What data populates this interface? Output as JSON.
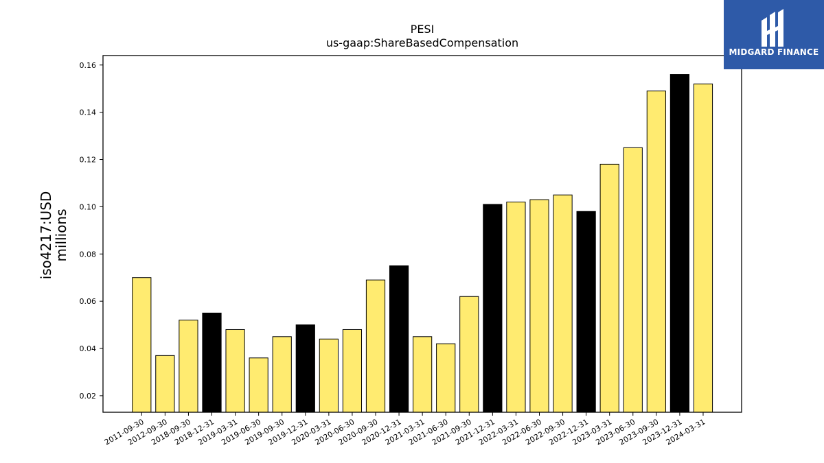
{
  "chart_data": {
    "type": "bar",
    "title": "PESI",
    "subtitle": "us-gaap:ShareBasedCompensation",
    "ylabel": "iso4217:USD",
    "ylabel2": "millions",
    "xlabel": "",
    "ylim": [
      0.013,
      0.164
    ],
    "yticks": [
      "0.02",
      "0.04",
      "0.06",
      "0.08",
      "0.10",
      "0.12",
      "0.14",
      "0.16"
    ],
    "categories": [
      "2011-09-30",
      "2012-09-30",
      "2018-09-30",
      "2018-12-31",
      "2019-03-31",
      "2019-06-30",
      "2019-09-30",
      "2019-12-31",
      "2020-03-31",
      "2020-06-30",
      "2020-09-30",
      "2020-12-31",
      "2021-03-31",
      "2021-06-30",
      "2021-09-30",
      "2021-12-31",
      "2022-03-31",
      "2022-06-30",
      "2022-09-30",
      "2022-12-31",
      "2023-03-31",
      "2023-06-30",
      "2023-09-30",
      "2023-12-31",
      "2024-03-31"
    ],
    "values": [
      0.07,
      0.037,
      0.052,
      0.055,
      0.048,
      0.036,
      0.045,
      0.05,
      0.044,
      0.048,
      0.069,
      0.075,
      0.045,
      0.042,
      0.062,
      0.101,
      0.102,
      0.103,
      0.105,
      0.098,
      0.118,
      0.125,
      0.149,
      0.156,
      0.152
    ],
    "colors": [
      "#ffeb70",
      "#ffeb70",
      "#ffeb70",
      "#000000",
      "#ffeb70",
      "#ffeb70",
      "#ffeb70",
      "#000000",
      "#ffeb70",
      "#ffeb70",
      "#ffeb70",
      "#000000",
      "#ffeb70",
      "#ffeb70",
      "#ffeb70",
      "#000000",
      "#ffeb70",
      "#ffeb70",
      "#ffeb70",
      "#000000",
      "#ffeb70",
      "#ffeb70",
      "#ffeb70",
      "#000000",
      "#ffeb70"
    ],
    "grid": false,
    "legend": "none"
  },
  "logo": {
    "text": "MIDGARD FINANCE",
    "icon": "midgard-logo-icon"
  }
}
